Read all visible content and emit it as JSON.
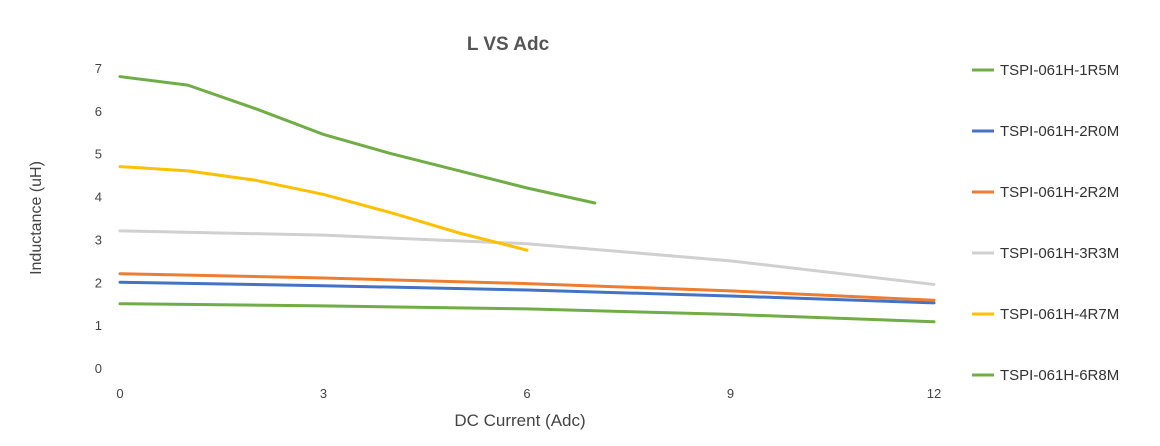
{
  "chart_data": {
    "type": "line",
    "title": "L VS Adc",
    "xlabel": "DC Current (Adc)",
    "ylabel": "Inductance (uH)",
    "xlim": [
      0,
      12
    ],
    "ylim": [
      0,
      7
    ],
    "xticks": [
      "0",
      "3",
      "6",
      "9",
      "12"
    ],
    "yticks": [
      "0",
      "1",
      "2",
      "3",
      "4",
      "5",
      "6",
      "7"
    ],
    "grid": false,
    "legend_position": "right",
    "series": [
      {
        "name": "TSPI-061H-1R5M",
        "color": "#70ad47",
        "x": [
          0,
          3,
          6,
          9,
          12
        ],
        "y": [
          1.5,
          1.45,
          1.38,
          1.25,
          1.08
        ]
      },
      {
        "name": "TSPI-061H-2R0M",
        "color": "#4472c4",
        "x": [
          0,
          3,
          6,
          9,
          12
        ],
        "y": [
          2.0,
          1.92,
          1.82,
          1.68,
          1.52
        ]
      },
      {
        "name": "TSPI-061H-2R2M",
        "color": "#ed7d31",
        "x": [
          0,
          3,
          6,
          9,
          12
        ],
        "y": [
          2.2,
          2.1,
          1.97,
          1.8,
          1.58
        ]
      },
      {
        "name": "TSPI-061H-3R3M",
        "color": "#d0d0d0",
        "x": [
          0,
          3,
          6,
          9,
          12
        ],
        "y": [
          3.2,
          3.1,
          2.9,
          2.5,
          1.95
        ]
      },
      {
        "name": "TSPI-061H-4R7M",
        "color": "#ffc000",
        "x": [
          0,
          1,
          2,
          3,
          4,
          5,
          6
        ],
        "y": [
          4.7,
          4.6,
          4.38,
          4.05,
          3.62,
          3.15,
          2.75
        ]
      },
      {
        "name": "TSPI-061H-6R8M",
        "color": "#70ad47",
        "x": [
          0,
          1,
          2,
          3,
          4,
          5,
          6,
          7
        ],
        "y": [
          6.8,
          6.6,
          6.05,
          5.45,
          5.0,
          4.6,
          4.2,
          3.85
        ]
      }
    ]
  }
}
